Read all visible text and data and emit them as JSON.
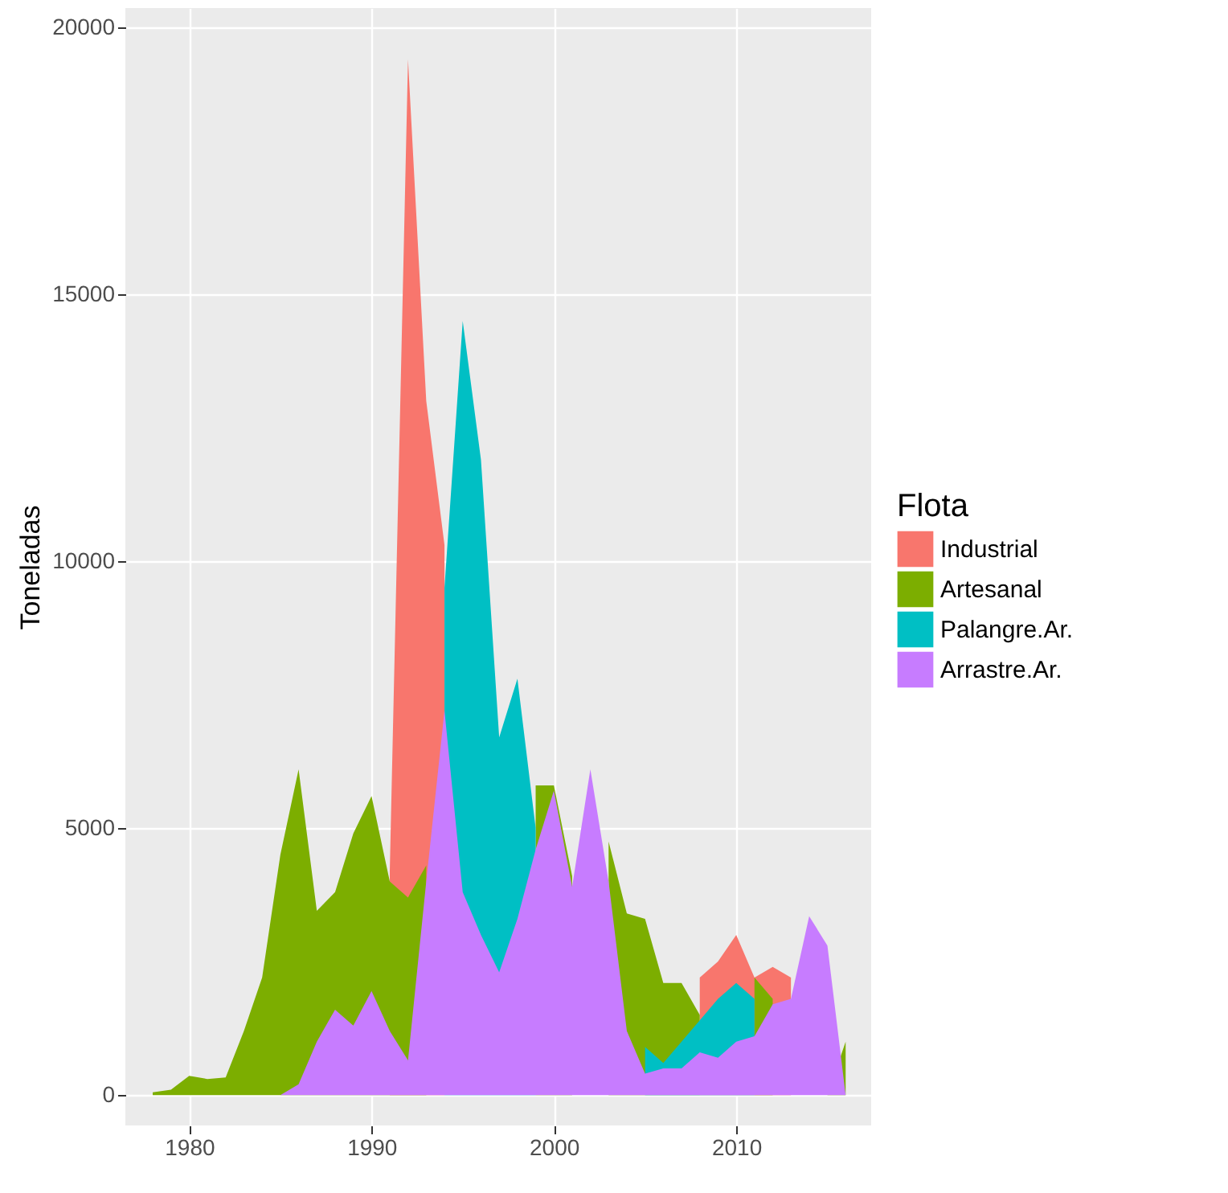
{
  "chart_data": {
    "type": "area",
    "ylabel": "Toneladas",
    "legend_title": "Flota",
    "legend": "right",
    "grid": true,
    "x": [
      1978,
      1979,
      1980,
      1981,
      1982,
      1983,
      1984,
      1985,
      1986,
      1987,
      1988,
      1989,
      1990,
      1991,
      1992,
      1993,
      1994,
      1995,
      1996,
      1997,
      1998,
      1999,
      2000,
      2001,
      2002,
      2003,
      2004,
      2005,
      2006,
      2007,
      2008,
      2009,
      2010,
      2011,
      2012,
      2013,
      2014,
      2015,
      2016
    ],
    "xlim": [
      1976.5,
      2017.4
    ],
    "xticks": [
      1980,
      1990,
      2000,
      2010
    ],
    "ylim": [
      -570,
      20360
    ],
    "yticks": [
      0,
      5000,
      10000,
      15000,
      20000
    ],
    "series": [
      {
        "name": "Industrial",
        "color": "#f8766d",
        "values": [
          null,
          null,
          null,
          null,
          null,
          null,
          null,
          null,
          null,
          null,
          null,
          null,
          null,
          4200,
          19400,
          13000,
          10300,
          null,
          null,
          null,
          null,
          null,
          null,
          null,
          null,
          null,
          null,
          null,
          null,
          null,
          2200,
          2500,
          3000,
          2200,
          2400,
          2200,
          null,
          null,
          null
        ]
      },
      {
        "name": "Artesanal",
        "color": "#7cae00",
        "values": [
          50,
          100,
          360,
          300,
          330,
          1200,
          2200,
          4500,
          6100,
          3450,
          3800,
          4900,
          5600,
          4000,
          3700,
          4300,
          null,
          null,
          null,
          null,
          null,
          5800,
          5800,
          4100,
          null,
          4750,
          3400,
          3300,
          2100,
          2100,
          1500,
          null,
          null,
          2200,
          1800,
          null,
          null,
          0,
          1000
        ]
      },
      {
        "name": "Palangre.Ar.",
        "color": "#00bfc4",
        "values": [
          null,
          null,
          null,
          null,
          null,
          null,
          null,
          null,
          null,
          null,
          null,
          null,
          null,
          null,
          null,
          null,
          9500,
          14500,
          11900,
          6700,
          7800,
          5000,
          null,
          null,
          null,
          null,
          null,
          900,
          600,
          1000,
          1400,
          1800,
          2100,
          1800,
          null,
          null,
          null,
          null,
          null
        ]
      },
      {
        "name": "Arrastre.Ar.",
        "color": "#c77cff",
        "values": [
          0,
          0,
          0,
          0,
          0,
          0,
          0,
          0,
          200,
          1000,
          1600,
          1300,
          1950,
          1200,
          650,
          4000,
          7200,
          3800,
          3000,
          2300,
          3300,
          4600,
          5700,
          3900,
          6100,
          4000,
          1200,
          400,
          500,
          500,
          800,
          700,
          1000,
          1100,
          1700,
          1800,
          3350,
          2800,
          0
        ]
      }
    ]
  }
}
